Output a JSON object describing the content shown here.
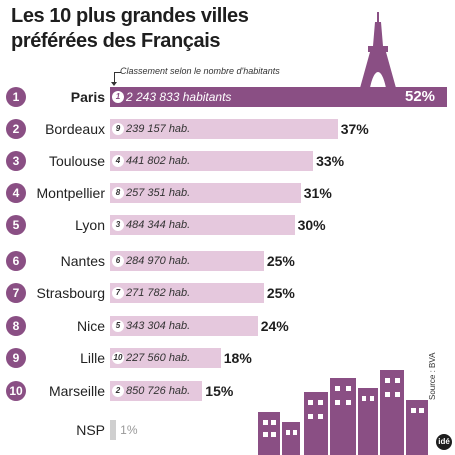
{
  "title_line1": "Les 10 plus grandes villes",
  "title_line2": "préférées des Français",
  "annotation": "Classement selon le nombre d'habitants",
  "source": "Source : BVA",
  "logo_text": "idé",
  "colors": {
    "accent": "#8a4f84",
    "bar": "#e5c8dd",
    "nsp_bar": "#cfcfcf"
  },
  "chart_data": {
    "type": "bar",
    "orientation": "horizontal",
    "categories": [
      "Paris",
      "Bordeaux",
      "Toulouse",
      "Montpellier",
      "Lyon",
      "Nantes",
      "Strasbourg",
      "Nice",
      "Lille",
      "Marseille",
      "NSP"
    ],
    "values": [
      52,
      37,
      33,
      31,
      30,
      25,
      25,
      24,
      18,
      15,
      1
    ],
    "value_labels": [
      "52%",
      "37%",
      "33%",
      "31%",
      "30%",
      "25%",
      "25%",
      "24%",
      "18%",
      "15%",
      "1%"
    ],
    "ranks": [
      "1",
      "2",
      "3",
      "4",
      "5",
      "6",
      "7",
      "8",
      "9",
      "10",
      ""
    ],
    "population_ranks": [
      "1",
      "9",
      "4",
      "8",
      "3",
      "6",
      "7",
      "5",
      "10",
      "2",
      ""
    ],
    "populations": [
      "2 243 833 habitants",
      "239 157 hab.",
      "441 802 hab.",
      "257 351 hab.",
      "484 344 hab.",
      "284 970 hab.",
      "271 782 hab.",
      "343 304 hab.",
      "227 560 hab.",
      "850 726 hab.",
      ""
    ],
    "xlim": [
      0,
      52
    ]
  }
}
